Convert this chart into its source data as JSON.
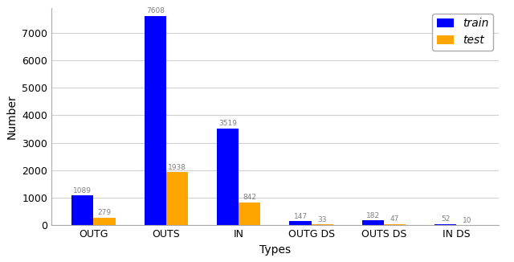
{
  "categories": [
    "OUTG",
    "OUTS",
    "IN",
    "OUTG DS",
    "OUTS DS",
    "IN DS"
  ],
  "train_values": [
    1089,
    7608,
    3519,
    147,
    182,
    52
  ],
  "test_values": [
    279,
    1938,
    842,
    33,
    47,
    10
  ],
  "train_color": "#0000ff",
  "test_color": "#ffa500",
  "xlabel": "Types",
  "ylabel": "Number",
  "ylim_max": 7900,
  "yticks": [
    0,
    1000,
    2000,
    3000,
    4000,
    5000,
    6000,
    7000
  ],
  "legend_labels": [
    "train",
    "test"
  ],
  "bar_width": 0.3,
  "label_fontsize": 6.5,
  "axis_label_fontsize": 10,
  "legend_fontsize": 10,
  "tick_fontsize": 9,
  "background_color": "#ffffff",
  "grid_color": "#d0d0d0",
  "label_color": "#808080"
}
